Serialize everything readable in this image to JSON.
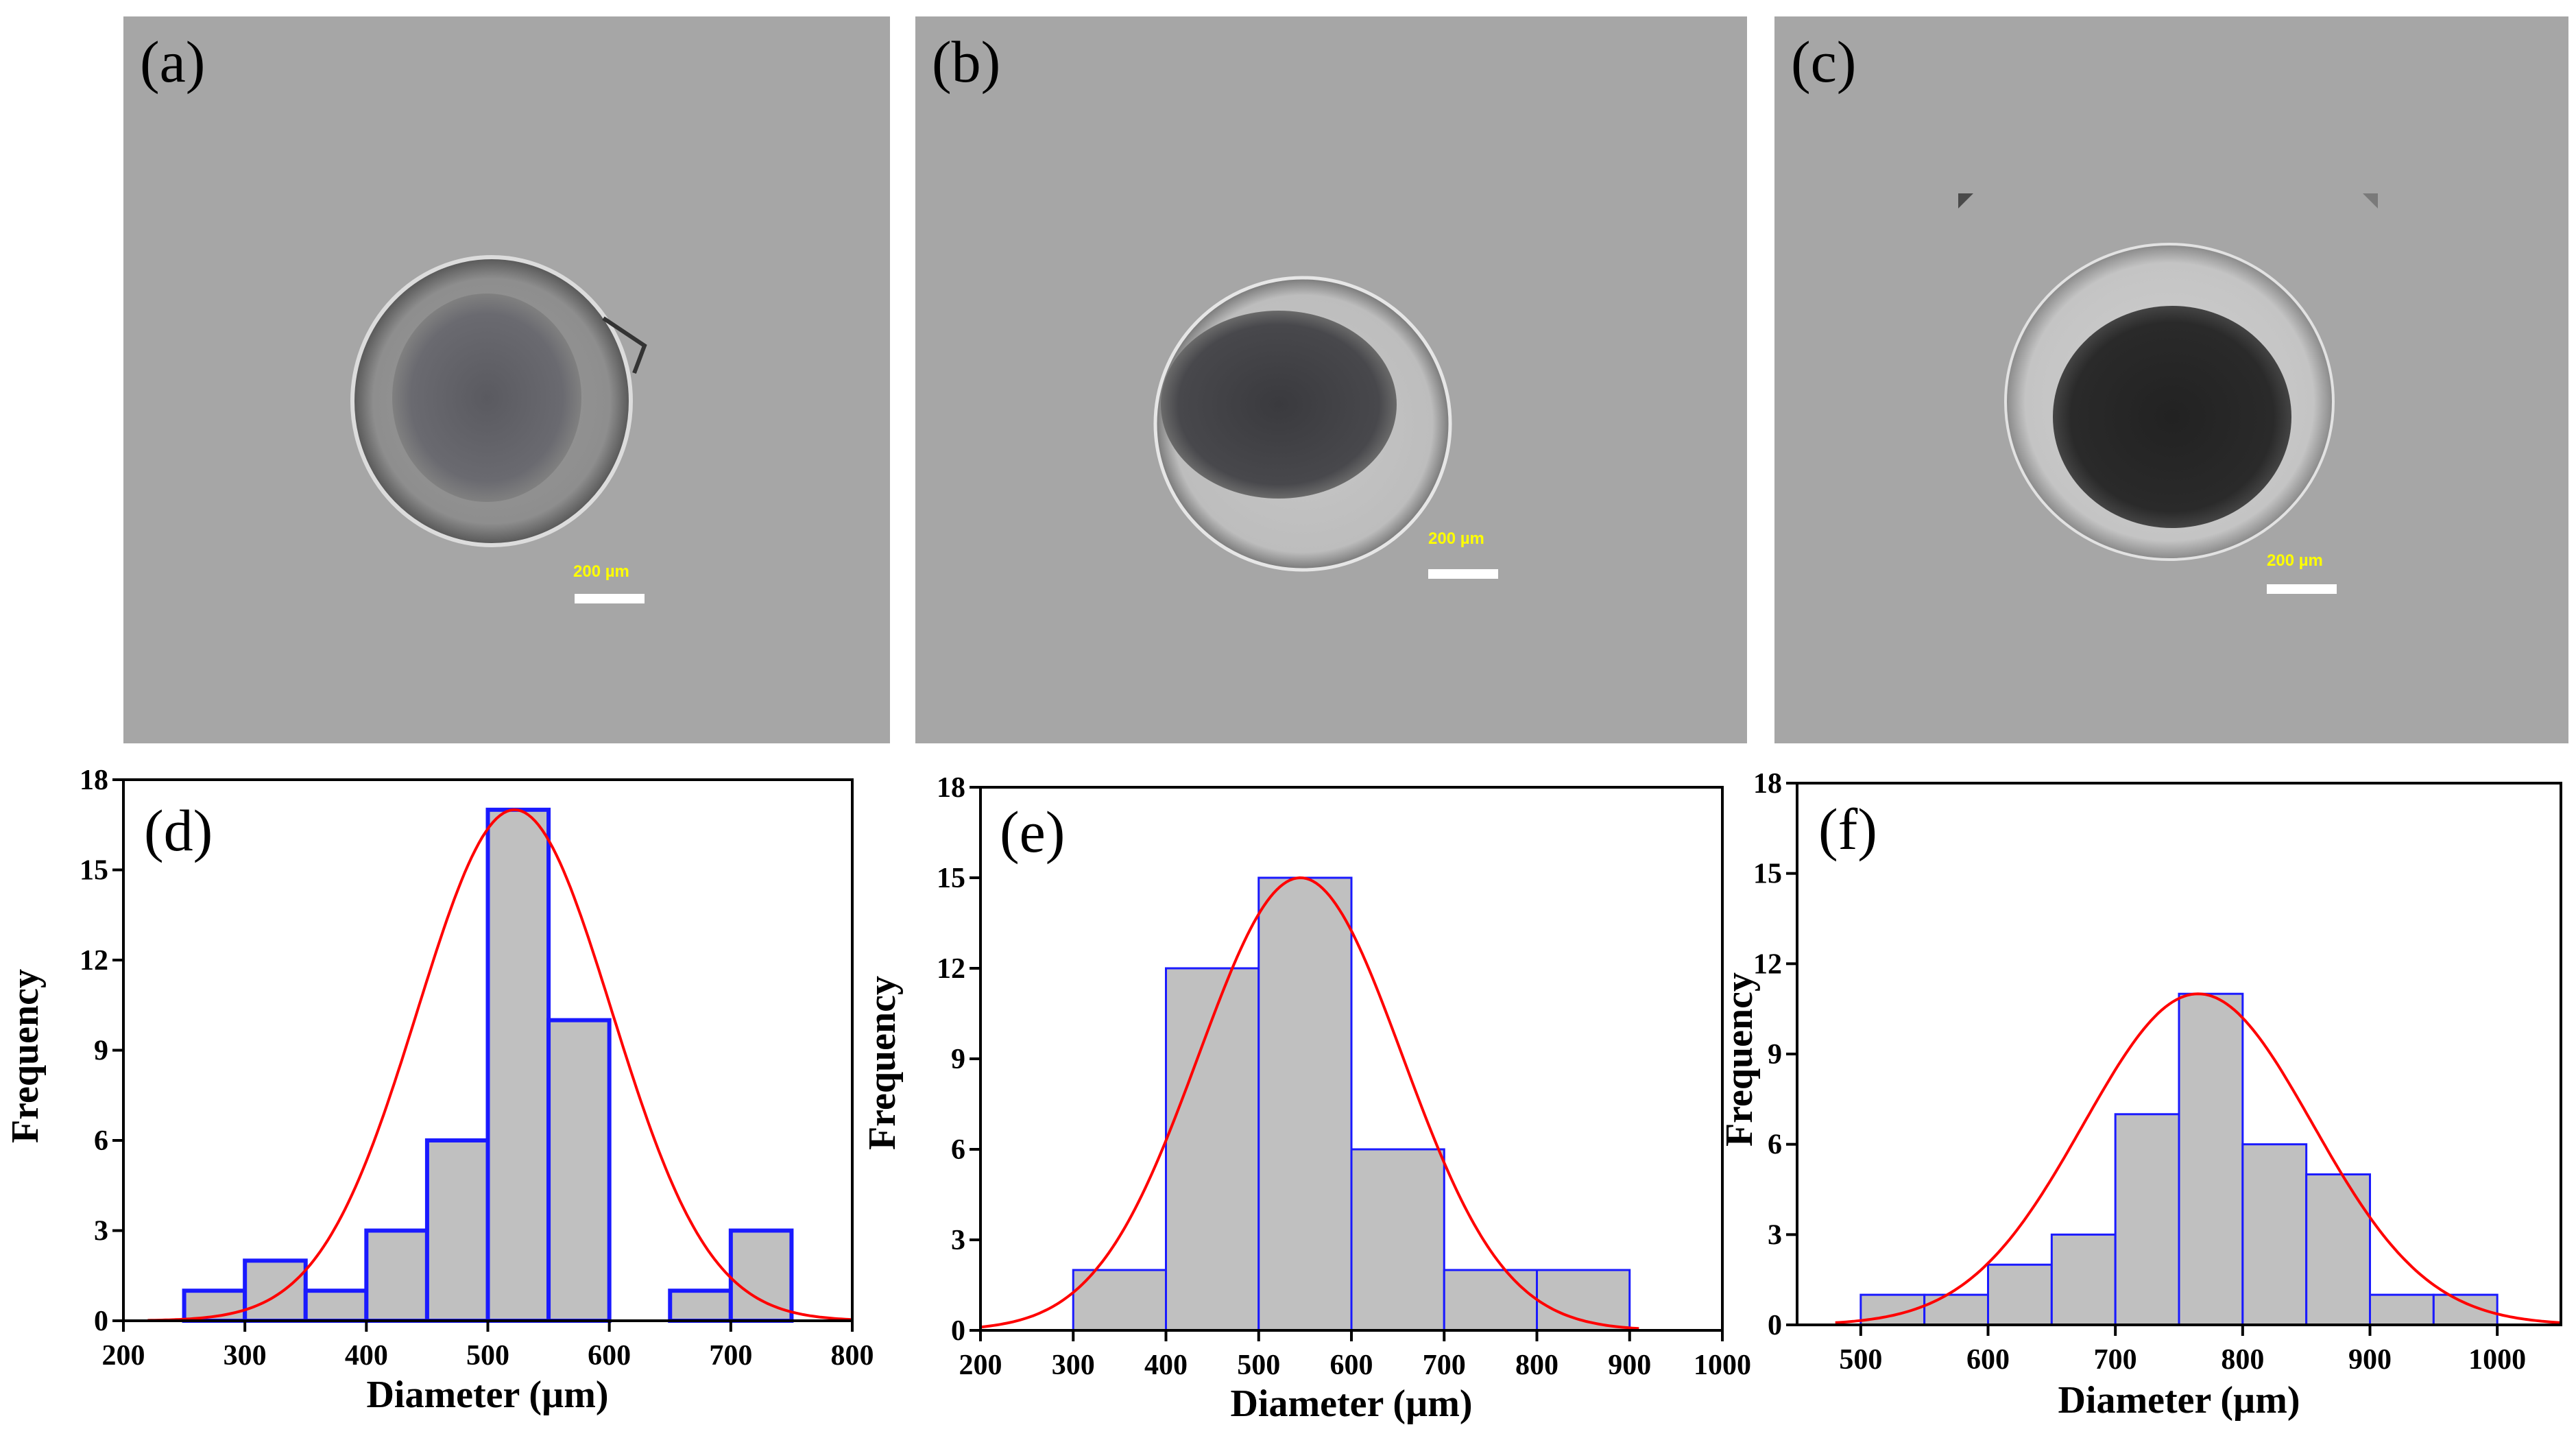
{
  "images": [
    {
      "id": "a",
      "label": "(a)",
      "scale_label": "200 µm"
    },
    {
      "id": "b",
      "label": "(b)",
      "scale_label": "200 µm"
    },
    {
      "id": "c",
      "label": "(c)",
      "scale_label": "200 µm"
    }
  ],
  "colors": {
    "bar_fill": "#c0c0c0",
    "bar_edge": "#1a1aff",
    "fit_line": "#ff0000",
    "image_bg": "#a6a6a6"
  },
  "chart_data": [
    {
      "type": "bar",
      "label": "(d)",
      "xlabel": "Diameter (µm)",
      "ylabel": "Frequency",
      "xlim": [
        200,
        800
      ],
      "ylim": [
        0,
        18
      ],
      "xticks": [
        200,
        300,
        400,
        500,
        600,
        700,
        800
      ],
      "yticks": [
        0,
        3,
        6,
        9,
        12,
        15,
        18
      ],
      "bin_width": 50,
      "bins": [
        {
          "start": 250,
          "value": 1
        },
        {
          "start": 300,
          "value": 2
        },
        {
          "start": 350,
          "value": 1
        },
        {
          "start": 400,
          "value": 3
        },
        {
          "start": 450,
          "value": 6
        },
        {
          "start": 500,
          "value": 17
        },
        {
          "start": 550,
          "value": 10
        },
        {
          "start": 650,
          "value": 1
        },
        {
          "start": 700,
          "value": 3
        }
      ],
      "fit": {
        "type": "gaussian",
        "mean": 522,
        "sd": 80,
        "peak": 17,
        "from": 220,
        "to": 800
      }
    },
    {
      "type": "bar",
      "label": "(e)",
      "xlabel": "Diameter (µm)",
      "ylabel": "Frequency",
      "xlim": [
        200,
        1000
      ],
      "ylim": [
        0,
        18
      ],
      "xticks": [
        200,
        300,
        400,
        500,
        600,
        700,
        800,
        900,
        1000
      ],
      "yticks": [
        0,
        3,
        6,
        9,
        12,
        15,
        18
      ],
      "bin_width": 100,
      "bins": [
        {
          "start": 300,
          "value": 2
        },
        {
          "start": 400,
          "value": 12
        },
        {
          "start": 500,
          "value": 15
        },
        {
          "start": 600,
          "value": 6
        },
        {
          "start": 700,
          "value": 2
        },
        {
          "start": 800,
          "value": 2
        }
      ],
      "fit": {
        "type": "gaussian",
        "mean": 545,
        "sd": 110,
        "peak": 15,
        "from": 200,
        "to": 910
      }
    },
    {
      "type": "bar",
      "label": "(f)",
      "xlabel": "Diameter (µm)",
      "ylabel": "Frequency",
      "xlim": [
        450,
        1050
      ],
      "ylim": [
        0,
        18
      ],
      "xticks": [
        500,
        600,
        700,
        800,
        900,
        1000
      ],
      "yticks": [
        0,
        3,
        6,
        9,
        12,
        15,
        18
      ],
      "bin_width": 50,
      "bins": [
        {
          "start": 500,
          "value": 1
        },
        {
          "start": 550,
          "value": 1
        },
        {
          "start": 600,
          "value": 2
        },
        {
          "start": 650,
          "value": 3
        },
        {
          "start": 700,
          "value": 7
        },
        {
          "start": 750,
          "value": 11
        },
        {
          "start": 800,
          "value": 6
        },
        {
          "start": 850,
          "value": 5
        },
        {
          "start": 900,
          "value": 1
        },
        {
          "start": 950,
          "value": 1
        }
      ],
      "fit": {
        "type": "gaussian",
        "mean": 765,
        "sd": 90,
        "peak": 11,
        "from": 480,
        "to": 1050
      }
    }
  ]
}
